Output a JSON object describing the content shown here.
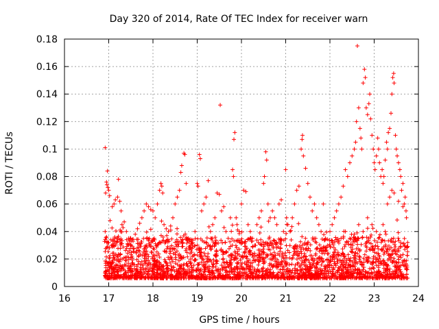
{
  "chart_data": {
    "type": "scatter",
    "title": "Day 320 of 2014, Rate Of TEC Index for receiver warn",
    "xlabel": "GPS time / hours",
    "ylabel": "ROTI / TECUs",
    "xlim": [
      16,
      24
    ],
    "ylim": [
      0,
      0.18
    ],
    "x_ticks": [
      16,
      17,
      18,
      19,
      20,
      21,
      22,
      23,
      24
    ],
    "x_tick_labels": [
      "16",
      "17",
      "18",
      "19",
      "20",
      "21",
      "22",
      "23",
      "24"
    ],
    "y_ticks": [
      0,
      0.02,
      0.04,
      0.06,
      0.08,
      0.1,
      0.12,
      0.14,
      0.16,
      0.18
    ],
    "y_tick_labels": [
      "0",
      "0.02",
      "0.04",
      "0.06",
      "0.08",
      "0.1",
      "0.12",
      "0.14",
      "0.16",
      "0.18"
    ],
    "grid": true,
    "marker": "+",
    "series": [
      {
        "name": "ROTI",
        "color": "#ff0000",
        "points": [
          [
            16.92,
            0.101
          ],
          [
            16.97,
            0.084
          ],
          [
            16.95,
            0.076
          ],
          [
            16.98,
            0.072
          ],
          [
            17.0,
            0.07
          ],
          [
            16.93,
            0.068
          ],
          [
            16.96,
            0.074
          ],
          [
            17.02,
            0.066
          ],
          [
            16.92,
            0.04
          ],
          [
            16.95,
            0.036
          ],
          [
            17.0,
            0.032
          ],
          [
            17.05,
            0.034
          ],
          [
            17.1,
            0.033
          ],
          [
            17.03,
            0.048
          ],
          [
            17.12,
            0.06
          ],
          [
            17.08,
            0.058
          ],
          [
            17.15,
            0.063
          ],
          [
            17.2,
            0.065
          ],
          [
            17.22,
            0.078
          ],
          [
            17.25,
            0.062
          ],
          [
            17.28,
            0.055
          ],
          [
            17.3,
            0.045
          ],
          [
            17.35,
            0.047
          ],
          [
            17.4,
            0.04
          ],
          [
            17.45,
            0.035
          ],
          [
            17.5,
            0.03
          ],
          [
            17.55,
            0.033
          ],
          [
            17.6,
            0.038
          ],
          [
            17.65,
            0.042
          ],
          [
            17.7,
            0.046
          ],
          [
            17.75,
            0.05
          ],
          [
            17.8,
            0.055
          ],
          [
            17.85,
            0.06
          ],
          [
            17.9,
            0.058
          ],
          [
            17.95,
            0.056
          ],
          [
            18.0,
            0.055
          ],
          [
            18.05,
            0.05
          ],
          [
            18.1,
            0.06
          ],
          [
            18.15,
            0.07
          ],
          [
            18.2,
            0.073
          ],
          [
            18.18,
            0.075
          ],
          [
            18.22,
            0.068
          ],
          [
            18.25,
            0.045
          ],
          [
            18.3,
            0.042
          ],
          [
            18.35,
            0.04
          ],
          [
            18.4,
            0.044
          ],
          [
            18.45,
            0.05
          ],
          [
            18.5,
            0.06
          ],
          [
            18.55,
            0.065
          ],
          [
            18.6,
            0.07
          ],
          [
            18.63,
            0.083
          ],
          [
            18.65,
            0.088
          ],
          [
            18.7,
            0.097
          ],
          [
            18.72,
            0.096
          ],
          [
            18.75,
            0.075
          ],
          [
            18.8,
            0.035
          ],
          [
            18.85,
            0.03
          ],
          [
            18.9,
            0.032
          ],
          [
            18.95,
            0.04
          ],
          [
            19.0,
            0.075
          ],
          [
            19.02,
            0.073
          ],
          [
            19.05,
            0.096
          ],
          [
            19.07,
            0.093
          ],
          [
            19.1,
            0.055
          ],
          [
            19.15,
            0.06
          ],
          [
            19.2,
            0.065
          ],
          [
            19.25,
            0.077
          ],
          [
            19.3,
            0.04
          ],
          [
            19.35,
            0.045
          ],
          [
            19.4,
            0.05
          ],
          [
            19.45,
            0.068
          ],
          [
            19.5,
            0.067
          ],
          [
            19.52,
            0.132
          ],
          [
            19.55,
            0.055
          ],
          [
            19.6,
            0.058
          ],
          [
            19.65,
            0.04
          ],
          [
            19.7,
            0.035
          ],
          [
            19.75,
            0.05
          ],
          [
            19.8,
            0.085
          ],
          [
            19.82,
            0.08
          ],
          [
            19.85,
            0.112
          ],
          [
            19.83,
            0.107
          ],
          [
            19.88,
            0.05
          ],
          [
            19.9,
            0.045
          ],
          [
            19.95,
            0.04
          ],
          [
            20.0,
            0.06
          ],
          [
            20.05,
            0.07
          ],
          [
            20.1,
            0.069
          ],
          [
            20.15,
            0.045
          ],
          [
            20.2,
            0.04
          ],
          [
            20.25,
            0.035
          ],
          [
            20.3,
            0.03
          ],
          [
            20.35,
            0.045
          ],
          [
            20.4,
            0.05
          ],
          [
            20.45,
            0.055
          ],
          [
            20.5,
            0.075
          ],
          [
            20.52,
            0.08
          ],
          [
            20.55,
            0.098
          ],
          [
            20.57,
            0.092
          ],
          [
            20.6,
            0.06
          ],
          [
            20.65,
            0.05
          ],
          [
            20.7,
            0.055
          ],
          [
            20.75,
            0.05
          ],
          [
            20.8,
            0.045
          ],
          [
            20.85,
            0.06
          ],
          [
            20.9,
            0.063
          ],
          [
            20.95,
            0.04
          ],
          [
            21.0,
            0.085
          ],
          [
            21.02,
            0.05
          ],
          [
            21.05,
            0.045
          ],
          [
            21.1,
            0.04
          ],
          [
            21.15,
            0.05
          ],
          [
            21.2,
            0.06
          ],
          [
            21.25,
            0.07
          ],
          [
            21.3,
            0.073
          ],
          [
            21.35,
            0.1
          ],
          [
            21.37,
            0.107
          ],
          [
            21.38,
            0.11
          ],
          [
            21.4,
            0.095
          ],
          [
            21.45,
            0.086
          ],
          [
            21.5,
            0.075
          ],
          [
            21.55,
            0.065
          ],
          [
            21.6,
            0.055
          ],
          [
            21.65,
            0.06
          ],
          [
            21.7,
            0.05
          ],
          [
            21.75,
            0.045
          ],
          [
            21.8,
            0.04
          ],
          [
            21.85,
            0.06
          ],
          [
            21.9,
            0.035
          ],
          [
            21.95,
            0.03
          ],
          [
            22.0,
            0.04
          ],
          [
            22.05,
            0.045
          ],
          [
            22.1,
            0.05
          ],
          [
            22.15,
            0.055
          ],
          [
            22.2,
            0.06
          ],
          [
            22.25,
            0.065
          ],
          [
            22.3,
            0.073
          ],
          [
            22.35,
            0.085
          ],
          [
            22.4,
            0.08
          ],
          [
            22.45,
            0.09
          ],
          [
            22.5,
            0.095
          ],
          [
            22.55,
            0.1
          ],
          [
            22.58,
            0.105
          ],
          [
            22.6,
            0.12
          ],
          [
            22.62,
            0.175
          ],
          [
            22.65,
            0.13
          ],
          [
            22.68,
            0.115
          ],
          [
            22.7,
            0.108
          ],
          [
            22.72,
            0.1
          ],
          [
            22.75,
            0.148
          ],
          [
            22.78,
            0.158
          ],
          [
            22.8,
            0.152
          ],
          [
            22.82,
            0.13
          ],
          [
            22.85,
            0.125
          ],
          [
            22.88,
            0.133
          ],
          [
            22.9,
            0.14
          ],
          [
            22.92,
            0.122
          ],
          [
            22.95,
            0.11
          ],
          [
            22.98,
            0.1
          ],
          [
            23.0,
            0.09
          ],
          [
            23.02,
            0.085
          ],
          [
            23.05,
            0.095
          ],
          [
            23.08,
            0.108
          ],
          [
            23.1,
            0.1
          ],
          [
            23.12,
            0.09
          ],
          [
            23.15,
            0.08
          ],
          [
            23.18,
            0.085
          ],
          [
            23.2,
            0.075
          ],
          [
            23.22,
            0.08
          ],
          [
            23.25,
            0.092
          ],
          [
            23.28,
            0.105
          ],
          [
            23.3,
            0.1
          ],
          [
            23.32,
            0.112
          ],
          [
            23.35,
            0.115
          ],
          [
            23.38,
            0.126
          ],
          [
            23.4,
            0.14
          ],
          [
            23.42,
            0.152
          ],
          [
            23.44,
            0.155
          ],
          [
            23.45,
            0.148
          ],
          [
            23.48,
            0.11
          ],
          [
            23.5,
            0.1
          ],
          [
            23.52,
            0.095
          ],
          [
            23.55,
            0.09
          ],
          [
            23.58,
            0.085
          ],
          [
            23.6,
            0.08
          ],
          [
            23.62,
            0.07
          ],
          [
            23.65,
            0.075
          ],
          [
            23.68,
            0.06
          ],
          [
            23.7,
            0.065
          ],
          [
            23.72,
            0.055
          ],
          [
            23.73,
            0.05
          ],
          [
            23.3,
            0.06
          ],
          [
            23.35,
            0.065
          ],
          [
            23.4,
            0.07
          ],
          [
            23.45,
            0.068
          ],
          [
            23.55,
            0.062
          ],
          [
            23.65,
            0.058
          ],
          [
            23.2,
            0.045
          ],
          [
            23.25,
            0.04
          ],
          [
            23.1,
            0.035
          ],
          [
            23.05,
            0.04
          ],
          [
            22.95,
            0.045
          ],
          [
            22.85,
            0.05
          ],
          [
            22.75,
            0.04
          ],
          [
            22.65,
            0.045
          ],
          [
            22.55,
            0.038
          ],
          [
            22.45,
            0.035
          ],
          [
            22.35,
            0.04
          ],
          [
            22.25,
            0.035
          ]
        ]
      }
    ]
  }
}
